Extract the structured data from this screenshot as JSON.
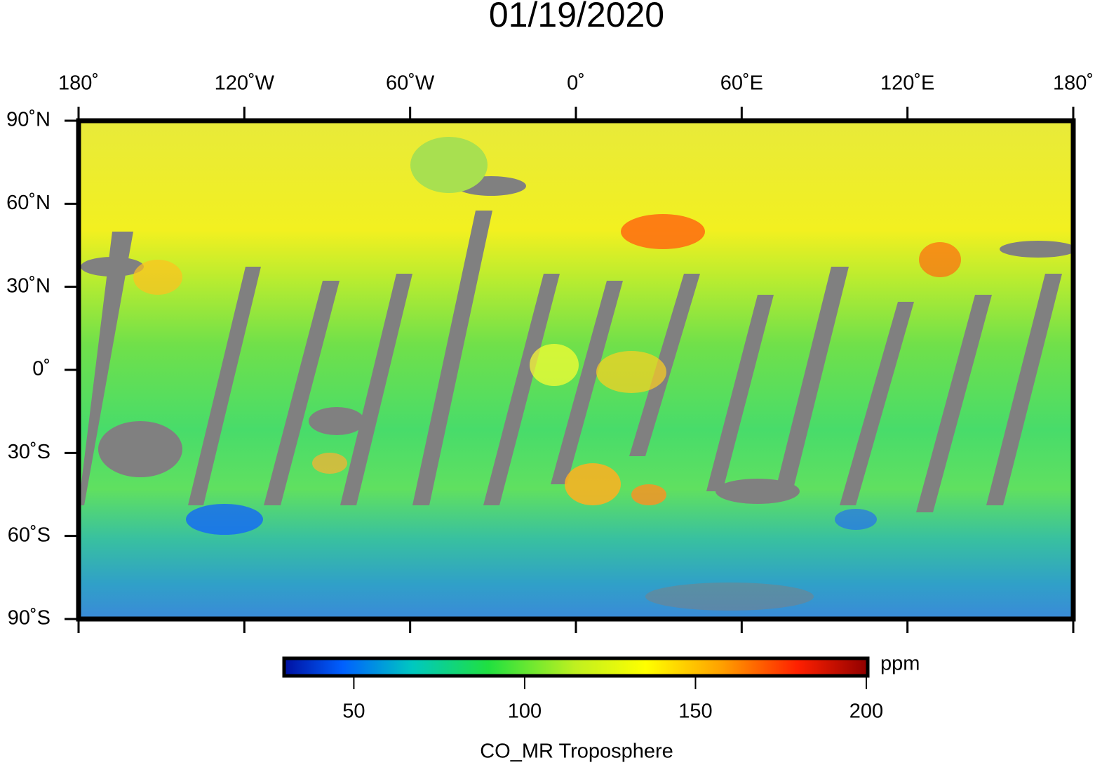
{
  "title": "01/19/2020",
  "map": {
    "xlim": [
      -180,
      180
    ],
    "ylim": [
      -90,
      90
    ],
    "xticks": [
      {
        "value": -180,
        "label": "180˚"
      },
      {
        "value": -120,
        "label": "120˚W"
      },
      {
        "value": -60,
        "label": "60˚W"
      },
      {
        "value": 0,
        "label": "0˚"
      },
      {
        "value": 60,
        "label": "60˚E"
      },
      {
        "value": 120,
        "label": "120˚E"
      },
      {
        "value": 180,
        "label": "180˚"
      }
    ],
    "yticks": [
      {
        "value": 90,
        "label": "90˚N"
      },
      {
        "value": 60,
        "label": "60˚N"
      },
      {
        "value": 30,
        "label": "30˚N"
      },
      {
        "value": 0,
        "label": "0˚"
      },
      {
        "value": -30,
        "label": "30˚S"
      },
      {
        "value": -60,
        "label": "60˚S"
      },
      {
        "value": -90,
        "label": "90˚S"
      }
    ]
  },
  "colorbar": {
    "lim": [
      30,
      200
    ],
    "ticks": [
      50,
      100,
      150,
      200
    ],
    "unit": "ppm",
    "label": "CO_MR Troposphere"
  }
}
